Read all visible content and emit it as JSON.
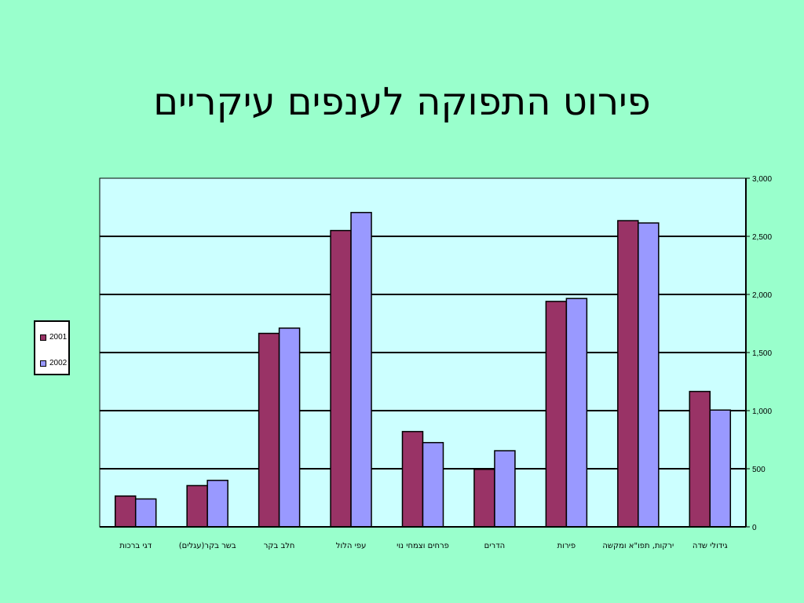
{
  "slide": {
    "title": "פירוט התפוקה לענפים עיקריים"
  },
  "chart_data": {
    "type": "bar",
    "categories": [
      "דגי ברכות",
      "בשר בקר(עגלים)",
      "חלב בקר",
      "עפי הלול",
      "פרחים וצמחי נוי",
      "הדרים",
      "פירות",
      "ירקות, תפו\"א ומקשה",
      "גידולי שדה"
    ],
    "series": [
      {
        "name": "2001",
        "values": [
          265,
          355,
          1665,
          2550,
          820,
          495,
          1940,
          2635,
          1165
        ],
        "color": "#993366"
      },
      {
        "name": "2002",
        "values": [
          240,
          400,
          1710,
          2705,
          725,
          655,
          1965,
          2615,
          1005
        ],
        "color": "#9999ff"
      }
    ],
    "y_ticks": [
      "0",
      "500",
      "1,000",
      "1,500",
      "2,000",
      "2,500",
      "3,000"
    ],
    "ylim": [
      0,
      3000
    ],
    "y_axis_side": "right",
    "grid": true,
    "legend_position": "left",
    "plot_background": "#ccffff"
  }
}
